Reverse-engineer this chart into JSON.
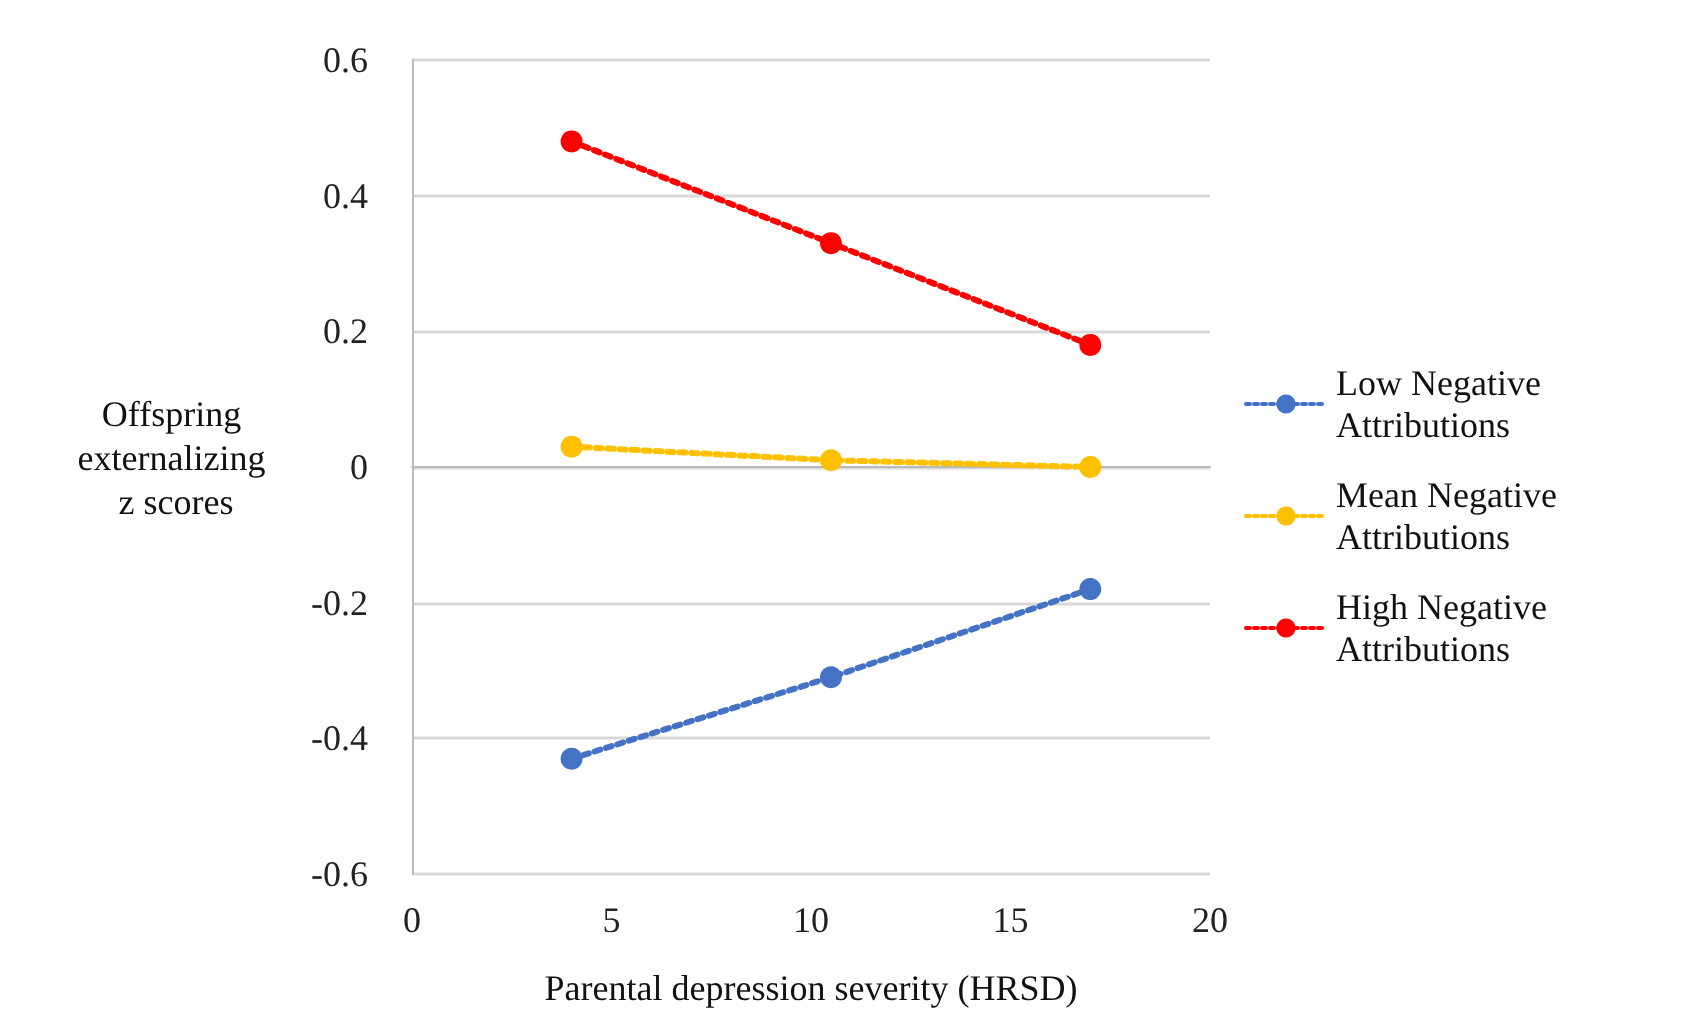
{
  "chart_data": {
    "type": "line",
    "xlabel": "Parental depression severity (HRSD)",
    "ylabel": "Offspring externalizing z scores",
    "x": [
      4,
      10.5,
      17
    ],
    "series": [
      {
        "name": "Low Negative Attributions",
        "color": "#4472c4",
        "values": [
          -0.43,
          -0.31,
          -0.18
        ]
      },
      {
        "name": "Mean Negative Attributions",
        "color": "#ffc000",
        "values": [
          0.03,
          0.01,
          0
        ]
      },
      {
        "name": "High Negative Attributions",
        "color": "#ff0000",
        "values": [
          0.48,
          0.33,
          0.18
        ]
      }
    ],
    "xlim": [
      0,
      20
    ],
    "xticks": [
      0,
      5,
      10,
      15,
      20
    ],
    "ylim": [
      -0.6,
      0.6
    ],
    "yticks": [
      -0.6,
      -0.4,
      -0.2,
      0,
      0.2,
      0.4,
      0.6
    ],
    "grid": "y",
    "legend": "right",
    "marker": "circle",
    "line_style": "dotted"
  }
}
